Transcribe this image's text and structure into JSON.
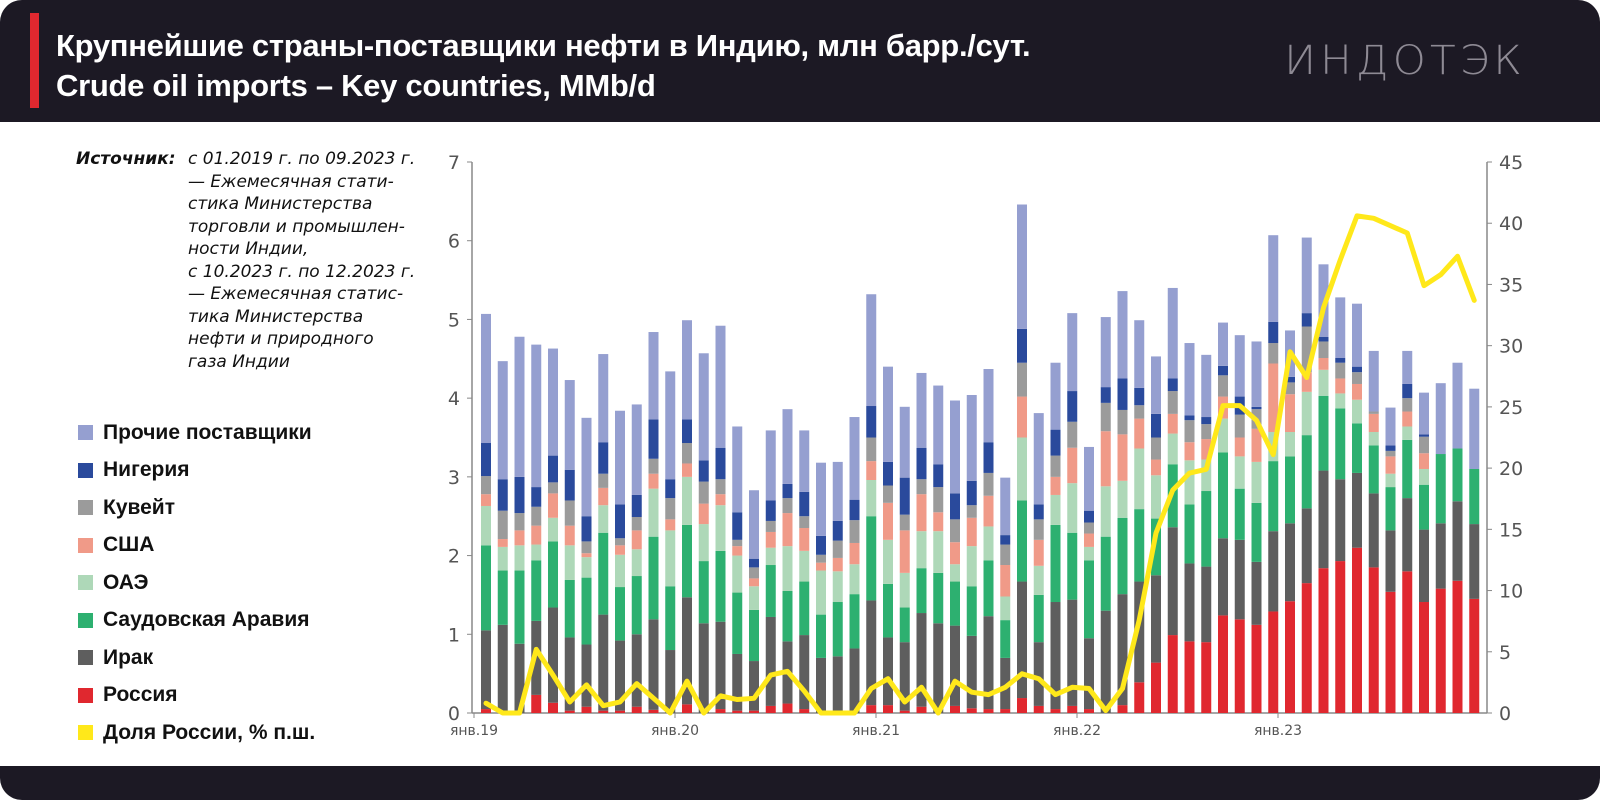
{
  "header": {
    "title_ru": "Крупнейшие страны-поставщики нефти в Индию, млн барр./сут.",
    "title_en": "Crude oil imports – Key countries, MMb/d",
    "logo": "ИНДОТЭК"
  },
  "source": {
    "label": "Источник:",
    "text": "с 01.2019 г. по 09.2023 г.\n— Ежемесячная стати-\nстика Министерства\nторговли и промышлен-\nности Индии,\nс 10.2023 г. по 12.2023 г.\n— Ежемесячная статис-\nтика Министерства\nнефти и природного\nгаза Индии"
  },
  "chart_data": {
    "type": "bar",
    "stacked": true,
    "title": "Крупнейшие страны-поставщики нефти в Индию, млн барр./сут.",
    "ylabel": "млн барр./сут.",
    "y2label": "% п.ш.",
    "ylim": [
      0,
      7
    ],
    "y2lim": [
      0,
      45
    ],
    "yticks": [
      "0",
      "1",
      "2",
      "3",
      "4",
      "5",
      "6",
      "7"
    ],
    "y2ticks": [
      "0",
      "5",
      "10",
      "15",
      "20",
      "25",
      "30",
      "35",
      "40",
      "45"
    ],
    "xtick_labels": [
      {
        "label": "янв.19",
        "index": 0
      },
      {
        "label": "янв.20",
        "index": 12
      },
      {
        "label": "янв.21",
        "index": 24
      },
      {
        "label": "янв.22",
        "index": 36
      },
      {
        "label": "янв.23",
        "index": 48
      }
    ],
    "start_month": "2019-01",
    "months": 60,
    "legend_position": "left",
    "grid": false,
    "series": [
      {
        "name": "Россия",
        "color": "#e0282f",
        "values": [
          0.05,
          0,
          0,
          0.23,
          0.13,
          0.03,
          0.08,
          0.03,
          0.03,
          0.08,
          0.04,
          0,
          0.11,
          0,
          0.05,
          0.03,
          0.03,
          0.09,
          0.12,
          0.05,
          0,
          0,
          0,
          0.1,
          0.1,
          0.03,
          0.08,
          0,
          0.09,
          0.06,
          0.05,
          0.05,
          0.19,
          0.09,
          0.05,
          0.09,
          0.05,
          0,
          0.1,
          0.39,
          0.64,
          0.99,
          0.91,
          0.9,
          1.24,
          1.19,
          1.12,
          1.29,
          1.42,
          1.65,
          1.84,
          1.93,
          2.1,
          1.85,
          1.54,
          1.8,
          1.41,
          1.58,
          1.68,
          1.45
        ]
      },
      {
        "name": "Ирак",
        "color": "#5e5e5e",
        "values": [
          1.0,
          1.12,
          0.88,
          0.94,
          1.21,
          0.93,
          0.79,
          1.22,
          0.89,
          0.92,
          1.15,
          0.8,
          1.36,
          1.14,
          1.11,
          0.72,
          0.63,
          1.13,
          0.79,
          0.94,
          0.7,
          0.72,
          0.82,
          1.33,
          0.86,
          0.87,
          1.19,
          1.14,
          1.02,
          0.92,
          1.18,
          0.65,
          1.48,
          0.81,
          1.36,
          1.35,
          0.9,
          1.3,
          1.41,
          1.28,
          1.11,
          1.37,
          0.99,
          0.96,
          0.98,
          1.01,
          0.8,
          1.02,
          0.99,
          0.95,
          1.24,
          1.04,
          0.95,
          0.94,
          0.78,
          0.93,
          0.92,
          0.83,
          1.01,
          0.95
        ]
      },
      {
        "name": "Саудовская Аравия",
        "color": "#2db070",
        "values": [
          1.08,
          0.69,
          0.93,
          0.77,
          0.84,
          0.73,
          0.85,
          1.04,
          0.68,
          0.74,
          1.05,
          0.81,
          0.92,
          0.79,
          0.9,
          0.78,
          0.65,
          0.66,
          0.64,
          0.68,
          0.55,
          0.69,
          0.69,
          1.07,
          0.68,
          0.44,
          0.57,
          0.64,
          0.56,
          0.63,
          0.71,
          0.48,
          1.03,
          0.6,
          0.98,
          0.85,
          0.99,
          0.94,
          0.97,
          0.92,
          0.72,
          0.8,
          0.75,
          0.96,
          1.09,
          0.65,
          0.75,
          0.89,
          0.85,
          0.93,
          0.95,
          0.9,
          0.63,
          0.61,
          0.55,
          0.74,
          0.57,
          0.88,
          0.67,
          0.7
        ]
      },
      {
        "name": "ОАЭ",
        "color": "#aed8b8",
        "values": [
          0.5,
          0.3,
          0.32,
          0.2,
          0.3,
          0.44,
          0.26,
          0.35,
          0.41,
          0.34,
          0.61,
          0.71,
          0.61,
          0.47,
          0.58,
          0.47,
          0.3,
          0.22,
          0.57,
          0.39,
          0.56,
          0.39,
          0.38,
          0.46,
          0.56,
          0.44,
          0.47,
          0.53,
          0.22,
          0.51,
          0.43,
          0.3,
          0.8,
          0.37,
          0.38,
          0.63,
          0.17,
          0.64,
          0.47,
          0.77,
          0.55,
          0.39,
          0.56,
          0.4,
          0.43,
          0.41,
          0.52,
          0.37,
          0.31,
          0.55,
          0.33,
          0.19,
          0.3,
          0.17,
          0.17,
          0.17,
          0.2,
          0,
          0,
          0
        ]
      },
      {
        "name": "США",
        "color": "#f09a88",
        "values": [
          0.15,
          0.1,
          0.19,
          0.24,
          0.31,
          0.25,
          0.05,
          0.22,
          0.12,
          0.24,
          0.19,
          0.14,
          0.17,
          0.26,
          0.14,
          0.12,
          0.1,
          0.2,
          0.42,
          0.29,
          0.1,
          0.17,
          0.27,
          0.24,
          0.47,
          0.54,
          0.47,
          0.24,
          0.28,
          0.36,
          0.39,
          0.4,
          0.52,
          0.33,
          0.23,
          0.45,
          0.17,
          0.7,
          0.59,
          0.38,
          0.2,
          0.25,
          0.23,
          0.26,
          0.28,
          0.24,
          0.42,
          0.87,
          0.48,
          0.25,
          0.15,
          0.19,
          0.2,
          0.23,
          0.22,
          0.19,
          0.2,
          0,
          0,
          0
        ]
      },
      {
        "name": "Кувейт",
        "color": "#9b9b9b",
        "values": [
          0.23,
          0.36,
          0.22,
          0.24,
          0.14,
          0.32,
          0.15,
          0.18,
          0.09,
          0.17,
          0.19,
          0.27,
          0.26,
          0.28,
          0.19,
          0.08,
          0.14,
          0.14,
          0.19,
          0.15,
          0.1,
          0.22,
          0.29,
          0.3,
          0.22,
          0.2,
          0.19,
          0.32,
          0.29,
          0.16,
          0.29,
          0.26,
          0.43,
          0.26,
          0.27,
          0.33,
          0.14,
          0.36,
          0.31,
          0.17,
          0.28,
          0.29,
          0.28,
          0.19,
          0.27,
          0.29,
          0.25,
          0.26,
          0.15,
          0.58,
          0.21,
          0.2,
          0.15,
          0.03,
          0.07,
          0.17,
          0.21,
          0,
          0,
          0
        ]
      },
      {
        "name": "Нигерия",
        "color": "#2a4a9c",
        "values": [
          0.42,
          0.4,
          0.46,
          0.25,
          0.34,
          0.39,
          0.32,
          0.4,
          0.43,
          0.28,
          0.5,
          0.24,
          0.3,
          0.27,
          0.4,
          0.35,
          0.11,
          0.26,
          0.18,
          0.31,
          0.24,
          0.25,
          0.26,
          0.4,
          0.3,
          0.47,
          0.4,
          0.29,
          0.33,
          0.31,
          0.39,
          0.12,
          0.43,
          0.19,
          0.33,
          0.39,
          0.15,
          0.2,
          0.4,
          0.22,
          0.3,
          0.16,
          0.06,
          0.09,
          0.12,
          0.23,
          0.03,
          0.27,
          0.07,
          0.17,
          0.06,
          0.06,
          0.07,
          0,
          0.07,
          0.18,
          0.03,
          0,
          0,
          0
        ]
      },
      {
        "name": "Прочие поставщики",
        "color": "#959fd0",
        "values": [
          1.64,
          1.5,
          1.78,
          1.81,
          1.36,
          1.14,
          1.25,
          1.12,
          1.19,
          1.15,
          1.11,
          1.37,
          1.26,
          1.36,
          1.55,
          1.09,
          0.87,
          0.89,
          0.95,
          0.78,
          0.93,
          0.75,
          1.05,
          1.42,
          1.21,
          0.9,
          0.95,
          1.0,
          1.18,
          1.09,
          0.93,
          0.73,
          1.58,
          1.16,
          0.85,
          0.99,
          0.81,
          0.89,
          1.11,
          0.86,
          0.73,
          1.15,
          0.92,
          0.79,
          0.55,
          0.78,
          0.83,
          1.1,
          0.59,
          0.96,
          0.92,
          0.77,
          0.8,
          0.77,
          0.48,
          0.42,
          0.53,
          0.9,
          1.09,
          1.02
        ]
      }
    ],
    "line": {
      "name": "Доля России, % п.ш.",
      "axis": "right",
      "color": "#ffe81a",
      "values": [
        0.8,
        0,
        0,
        5.2,
        3.1,
        0.9,
        2.3,
        0.6,
        0.9,
        2.4,
        1.2,
        0,
        2.6,
        0,
        1.4,
        1.1,
        1.2,
        3.1,
        3.4,
        1.8,
        0,
        0,
        0,
        2.0,
        2.8,
        0.9,
        2.1,
        0,
        2.6,
        1.7,
        1.5,
        2.1,
        3.2,
        2.8,
        1.5,
        2.1,
        2.0,
        0.2,
        2.0,
        7.6,
        14.7,
        18.2,
        19.6,
        19.9,
        25.1,
        25.1,
        23.9,
        21.1,
        29.5,
        27.4,
        33.1,
        37.0,
        40.6,
        40.4,
        39.8,
        39.2,
        34.9,
        35.8,
        37.3,
        33.7
      ]
    },
    "legend": [
      {
        "label": "Прочие поставщики",
        "color": "#959fd0"
      },
      {
        "label": "Нигерия",
        "color": "#2a4a9c"
      },
      {
        "label": "Кувейт",
        "color": "#9b9b9b"
      },
      {
        "label": "США",
        "color": "#f09a88"
      },
      {
        "label": "ОАЭ",
        "color": "#aed8b8"
      },
      {
        "label": "Саудовская Аравия",
        "color": "#2db070"
      },
      {
        "label": "Ирак",
        "color": "#5e5e5e"
      },
      {
        "label": "Россия",
        "color": "#e0282f"
      },
      {
        "label": "Доля России, % п.ш.",
        "color": "#ffe81a"
      }
    ]
  }
}
